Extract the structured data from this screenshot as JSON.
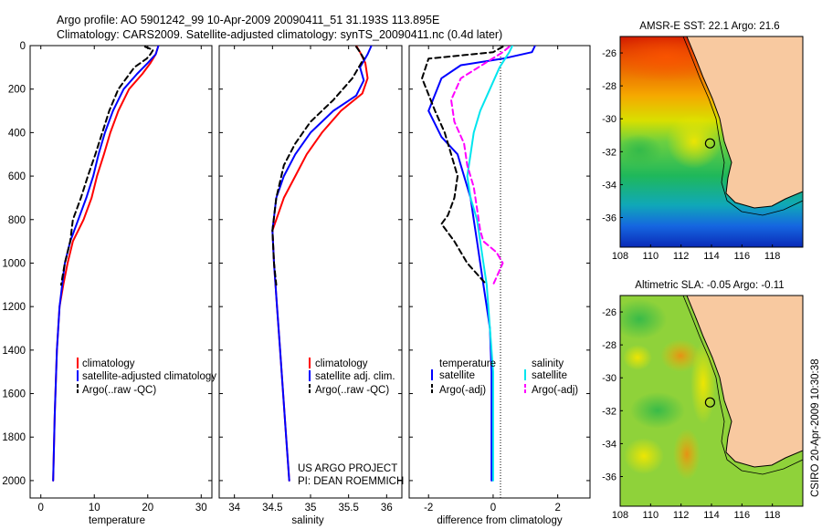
{
  "header": {
    "line1": "Argo profile: AO 5901242_99 10-Apr-2009 20090411_51 31.193S 113.895E",
    "line2": "Climatology: CARS2009. Satellite-adjusted climatology: synTS_20090411.nc (0.4d later)"
  },
  "colors": {
    "climatology": "#ff0000",
    "satellite": "#0000ff",
    "argo": "#000000",
    "salinity_satellite": "#00e5ee",
    "salinity_argo": "#ff00ff"
  },
  "chart_data": [
    {
      "type": "line",
      "panel": "temperature",
      "xlabel": "temperature",
      "ylabel": "",
      "xlim": [
        -2,
        32
      ],
      "ylim": [
        2080,
        0
      ],
      "y_reversed": true,
      "xticks": [
        "0",
        "10",
        "20",
        "30"
      ],
      "xtick_values": [
        0,
        10,
        20,
        30
      ],
      "yticks": [
        "0",
        "200",
        "400",
        "600",
        "800",
        "1000",
        "1200",
        "1400",
        "1600",
        "1800",
        "2000"
      ],
      "ytick_values": [
        0,
        200,
        400,
        600,
        800,
        1000,
        1200,
        1400,
        1600,
        1800,
        2000
      ],
      "legend": [
        "climatology",
        "satellite-adjusted climatology",
        "Argo(..raw -QC)"
      ],
      "series": [
        {
          "name": "climatology",
          "color": "#ff0000",
          "style": "solid",
          "x": [
            22.0,
            21.5,
            20.5,
            19.0,
            16.5,
            14.5,
            13.0,
            11.8,
            10.5,
            9.5,
            8.0,
            6.0,
            5.0,
            4.2,
            3.5,
            3.0,
            2.6,
            2.3
          ],
          "y": [
            0,
            40,
            80,
            130,
            200,
            300,
            400,
            500,
            600,
            700,
            800,
            900,
            1000,
            1100,
            1200,
            1400,
            1700,
            2000
          ]
        },
        {
          "name": "satellite-adjusted climatology",
          "color": "#0000ff",
          "style": "solid",
          "x": [
            22.0,
            21.5,
            20.0,
            18.0,
            15.5,
            13.5,
            12.0,
            10.8,
            9.8,
            8.5,
            7.0,
            5.5,
            4.5,
            4.0,
            3.5,
            3.0,
            2.6,
            2.3
          ],
          "y": [
            0,
            40,
            80,
            130,
            200,
            300,
            400,
            500,
            600,
            700,
            800,
            900,
            1000,
            1100,
            1200,
            1400,
            1700,
            2000
          ]
        },
        {
          "name": "Argo(..raw -QC)",
          "color": "#000000",
          "style": "dashed",
          "x": [
            19.5,
            21.0,
            20.5,
            19.8,
            17.5,
            14.5,
            12.8,
            11.5,
            10.2,
            8.8,
            7.5,
            6.0,
            5.5,
            4.5,
            3.8
          ],
          "y": [
            5,
            20,
            40,
            60,
            100,
            200,
            300,
            400,
            500,
            600,
            700,
            800,
            900,
            1000,
            1100
          ]
        }
      ]
    },
    {
      "type": "line",
      "panel": "salinity",
      "xlabel": "salinity",
      "ylabel": "",
      "xlim": [
        33.8,
        36.2
      ],
      "ylim": [
        2080,
        0
      ],
      "y_reversed": true,
      "xticks": [
        "34",
        "34.5",
        "35",
        "35.5",
        "36"
      ],
      "xtick_values": [
        34,
        34.5,
        35,
        35.5,
        36
      ],
      "legend": [
        "climatology",
        "satellite adj. clim.",
        "Argo(..raw -QC)"
      ],
      "annotations": [
        "US ARGO PROJECT",
        "PI: DEAN ROEMMICH"
      ],
      "series": [
        {
          "name": "climatology",
          "color": "#ff0000",
          "style": "solid",
          "x": [
            35.6,
            35.65,
            35.72,
            35.75,
            35.68,
            35.4,
            35.15,
            34.95,
            34.8,
            34.65,
            34.55,
            34.5,
            34.52,
            34.56,
            34.6,
            34.64,
            34.68,
            34.72
          ],
          "y": [
            0,
            30,
            80,
            150,
            220,
            300,
            400,
            500,
            600,
            700,
            800,
            850,
            1000,
            1200,
            1400,
            1600,
            1800,
            2000
          ]
        },
        {
          "name": "satellite adj. clim.",
          "color": "#0000ff",
          "style": "solid",
          "x": [
            35.8,
            35.75,
            35.65,
            35.7,
            35.6,
            35.3,
            35.0,
            34.8,
            34.65,
            34.55,
            34.5,
            34.52,
            34.56,
            34.6,
            34.64,
            34.68,
            34.72
          ],
          "y": [
            0,
            40,
            100,
            160,
            230,
            300,
            400,
            500,
            600,
            700,
            850,
            1000,
            1200,
            1400,
            1600,
            1800,
            2000
          ]
        },
        {
          "name": "Argo(..raw -QC)",
          "color": "#000000",
          "style": "dashed",
          "x": [
            35.6,
            35.65,
            35.7,
            35.55,
            35.3,
            35.0,
            34.8,
            34.65,
            34.55,
            34.5,
            34.52,
            34.55
          ],
          "y": [
            5,
            30,
            60,
            150,
            250,
            350,
            450,
            550,
            700,
            850,
            1000,
            1100
          ]
        }
      ]
    },
    {
      "type": "line",
      "panel": "difference",
      "xlabel": "difference from climatology",
      "ylabel": "",
      "xlim": [
        -2.6,
        3.0
      ],
      "ylim": [
        2080,
        0
      ],
      "y_reversed": true,
      "xticks": [
        "-2",
        "0",
        "2"
      ],
      "xtick_values": [
        -2,
        0,
        2
      ],
      "legend_left_title": "temperature",
      "legend_right_title": "salinity",
      "legend": [
        "satellite",
        "Argo(-adj)",
        "satellite",
        "Argo(-adj)"
      ],
      "series": [
        {
          "name": "temperature satellite",
          "color": "#0000ff",
          "style": "solid",
          "x": [
            1.3,
            1.2,
            0.3,
            -1.0,
            -1.6,
            -2.0,
            -1.6,
            -1.1,
            -0.9,
            -0.7,
            -0.6,
            -0.5,
            -0.4,
            -0.3,
            -0.2,
            -0.1,
            -0.05,
            -0.05
          ],
          "y": [
            0,
            30,
            60,
            90,
            150,
            300,
            420,
            500,
            600,
            700,
            800,
            900,
            1000,
            1100,
            1200,
            1300,
            1500,
            2000
          ]
        },
        {
          "name": "temperature Argo(-adj)",
          "color": "#000000",
          "style": "dashed",
          "x": [
            0.3,
            0.0,
            -2.0,
            -2.2,
            -1.8,
            -1.5,
            -1.3,
            -1.1,
            -1.2,
            -1.4,
            -1.6,
            -1.2,
            -0.8,
            -0.2
          ],
          "y": [
            5,
            30,
            60,
            150,
            300,
            400,
            500,
            600,
            700,
            780,
            820,
            900,
            1000,
            1100
          ]
        },
        {
          "name": "salinity satellite",
          "color": "#00e5ee",
          "style": "solid",
          "x": [
            0.6,
            0.5,
            0.2,
            -0.1,
            -0.4,
            -0.6,
            -0.7,
            -0.8,
            -0.7,
            -0.5,
            -0.4,
            -0.3,
            -0.2,
            -0.1,
            0.0,
            0.0,
            0.0
          ],
          "y": [
            0,
            30,
            100,
            200,
            300,
            400,
            500,
            600,
            700,
            800,
            900,
            1000,
            1100,
            1300,
            1500,
            1700,
            2000
          ]
        },
        {
          "name": "salinity Argo(-adj)",
          "color": "#ff00ff",
          "style": "dashed",
          "x": [
            0.5,
            0.3,
            -1.0,
            -1.3,
            -1.2,
            -0.9,
            -0.8,
            -0.6,
            -0.5,
            -0.4,
            -0.3,
            0.1,
            0.3,
            0.0
          ],
          "y": [
            5,
            30,
            150,
            250,
            350,
            450,
            550,
            650,
            750,
            850,
            900,
            950,
            1000,
            1100
          ]
        }
      ]
    }
  ],
  "maps": [
    {
      "title": "AMSR-E SST: 22.1 Argo: 21.6",
      "xticks": [
        "108",
        "110",
        "112",
        "114",
        "116",
        "118"
      ],
      "yticks": [
        "-26",
        "-28",
        "-30",
        "-32",
        "-34",
        "-36"
      ],
      "marker": {
        "lon": 113.895,
        "lat": -31.193
      }
    },
    {
      "title": "Altimetric SLA: -0.05 Argo: -0.11",
      "xticks": [
        "108",
        "110",
        "112",
        "114",
        "116",
        "118"
      ],
      "yticks": [
        "-26",
        "-28",
        "-30",
        "-32",
        "-34",
        "-36"
      ],
      "marker": {
        "lon": 113.895,
        "lat": -31.193
      }
    }
  ],
  "footer": {
    "stamp": "CSIRO 20-Apr-2009 10:30:38"
  }
}
